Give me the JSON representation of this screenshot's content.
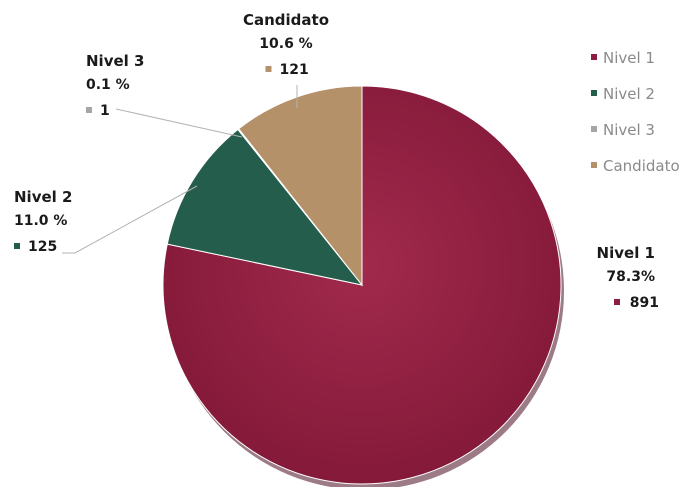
{
  "chart_data": {
    "type": "pie",
    "title": "",
    "categories": [
      "Nivel 1",
      "Nivel 2",
      "Nivel 3",
      "Candidato"
    ],
    "values": [
      891,
      125,
      1,
      121
    ],
    "percent_labels": [
      "78.3%",
      "11.0 %",
      "0.1 %",
      "10.6 %"
    ],
    "colors": [
      "#8e1e40",
      "#245d4b",
      "#a6a6a6",
      "#b5916a"
    ],
    "legend": {
      "placement": "right",
      "entries": [
        "Nivel 1",
        "Nivel 2",
        "Nivel 3",
        "Candidato"
      ]
    }
  }
}
